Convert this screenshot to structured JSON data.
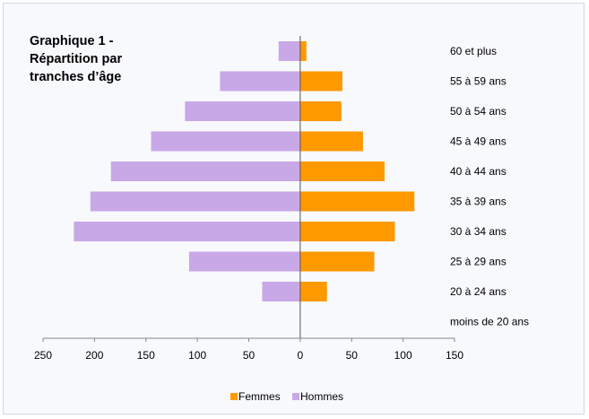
{
  "chart_data": {
    "type": "bar",
    "orientation": "horizontal",
    "title": "Graphique 1 -\nRépartition par\ntranches d’âge",
    "categories": [
      "moins de 20 ans",
      "20 à 24 ans",
      "25 à 29 ans",
      "30 à 34 ans",
      "35 à 39 ans",
      "40 à 44 ans",
      "45 à 49 ans",
      "50 à 54 ans",
      "55 à 59 ans",
      "60 et plus"
    ],
    "series": [
      {
        "name": "Femmes",
        "color": "#ff9900",
        "values": [
          0,
          26,
          72,
          92,
          111,
          82,
          61,
          40,
          41,
          6
        ]
      },
      {
        "name": "Hommes",
        "color": "#c9a8e8",
        "values": [
          0,
          -37,
          -108,
          -220,
          -204,
          -184,
          -145,
          -112,
          -78,
          -21
        ]
      }
    ],
    "xlim": [
      -250,
      150
    ],
    "xticks": [
      -250,
      -200,
      -150,
      -100,
      -50,
      0,
      50,
      100,
      150
    ],
    "xtick_labels": [
      "250",
      "200",
      "150",
      "100",
      "50",
      "0",
      "50",
      "100",
      "150"
    ],
    "legend_position": "bottom",
    "grid": false
  }
}
